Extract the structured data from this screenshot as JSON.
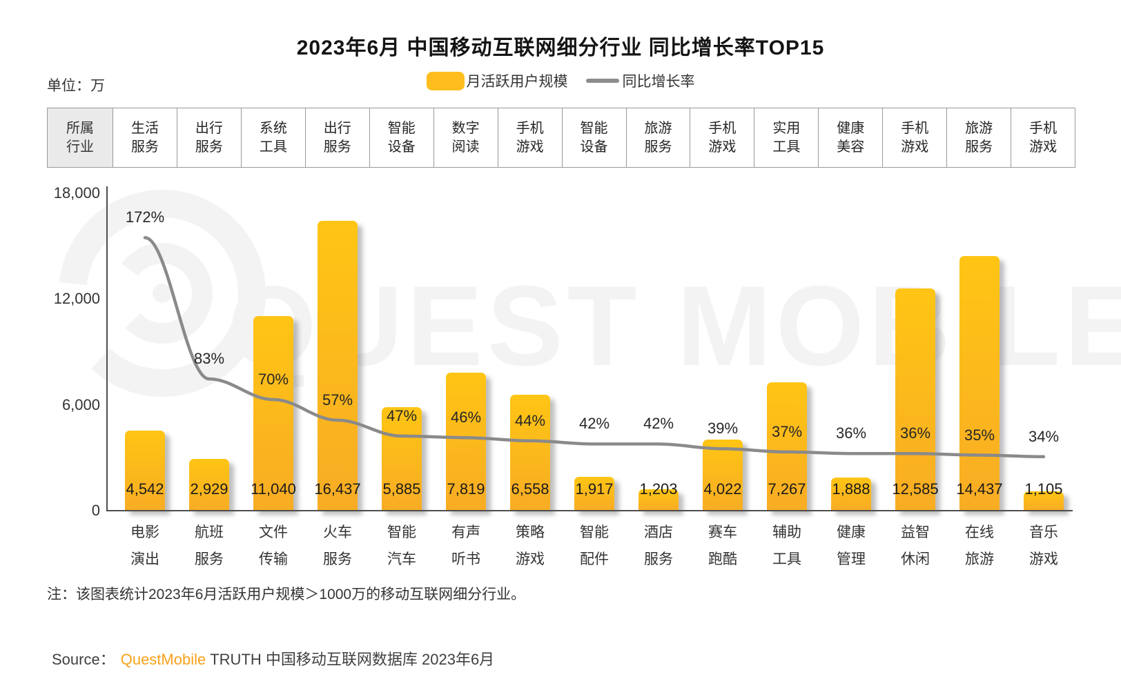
{
  "title": "2023年6月 中国移动互联网细分行业 同比增长率TOP15",
  "unit_label": "单位：万",
  "legend": {
    "bar_label": "月活跃用户规模",
    "line_label": "同比增长率"
  },
  "industry_header": {
    "label": "所属\n行业",
    "industries": [
      "生活\n服务",
      "出行\n服务",
      "系统\n工具",
      "出行\n服务",
      "智能\n设备",
      "数字\n阅读",
      "手机\n游戏",
      "智能\n设备",
      "旅游\n服务",
      "手机\n游戏",
      "实用\n工具",
      "健康\n美容",
      "手机\n游戏",
      "旅游\n服务",
      "手机\n游戏"
    ]
  },
  "chart_data": {
    "type": "bar",
    "combo_with_line": true,
    "title": "2023年6月 中国移动互联网细分行业 同比增长率TOP15",
    "unit": "万",
    "categories": [
      "电影\n演出",
      "航班\n服务",
      "文件\n传输",
      "火车\n服务",
      "智能\n汽车",
      "有声\n听书",
      "策略\n游戏",
      "智能\n配件",
      "酒店\n服务",
      "赛车\n跑酷",
      "辅助\n工具",
      "健康\n管理",
      "益智\n休闲",
      "在线\n旅游",
      "音乐\n游戏"
    ],
    "series": [
      {
        "name": "月活跃用户规模",
        "type": "bar",
        "axis": "left",
        "values": [
          4542,
          2929,
          11040,
          16437,
          5885,
          7819,
          6558,
          1917,
          1203,
          4022,
          7267,
          1888,
          12585,
          14437,
          1105
        ],
        "labels": [
          "4,542",
          "2,929",
          "11,040",
          "16,437",
          "5,885",
          "7,819",
          "6,558",
          "1,917",
          "1,203",
          "4,022",
          "7,267",
          "1,888",
          "12,585",
          "14,437",
          "1,105"
        ]
      },
      {
        "name": "同比增长率",
        "type": "line",
        "axis": "right",
        "unit": "%",
        "values": [
          172,
          83,
          70,
          57,
          47,
          46,
          44,
          42,
          42,
          39,
          37,
          36,
          36,
          35,
          34
        ],
        "labels": [
          "172%",
          "83%",
          "70%",
          "57%",
          "47%",
          "46%",
          "44%",
          "42%",
          "42%",
          "39%",
          "37%",
          "36%",
          "36%",
          "35%",
          "34%"
        ]
      }
    ],
    "ylim": [
      0,
      18000
    ],
    "yticks": [
      {
        "label": "18,000",
        "value": 18000
      },
      {
        "label": "12,000",
        "value": 12000
      },
      {
        "label": "6,000",
        "value": 6000
      },
      {
        "label": "0",
        "value": 0
      }
    ],
    "secondary_ylim": [
      0,
      200
    ],
    "grid": false,
    "legend_position": "top"
  },
  "note": "注：该图表统计2023年6月活跃用户规模＞1000万的移动互联网细分行业。",
  "source": {
    "prefix": "Source：",
    "brand": "QuestMobile",
    "suffix": "TRUTH 中国移动互联网数据库 2023年6月"
  },
  "watermark": {
    "text": "QUEST MOBILE"
  },
  "colors": {
    "bar_top": "#FFC514",
    "bar_bottom": "#F8AC24",
    "line": "#8A8A8A",
    "brand_orange": "#F7A21A",
    "watermark": "#F3F3F3",
    "table_header_bg": "#EAEAEA"
  }
}
